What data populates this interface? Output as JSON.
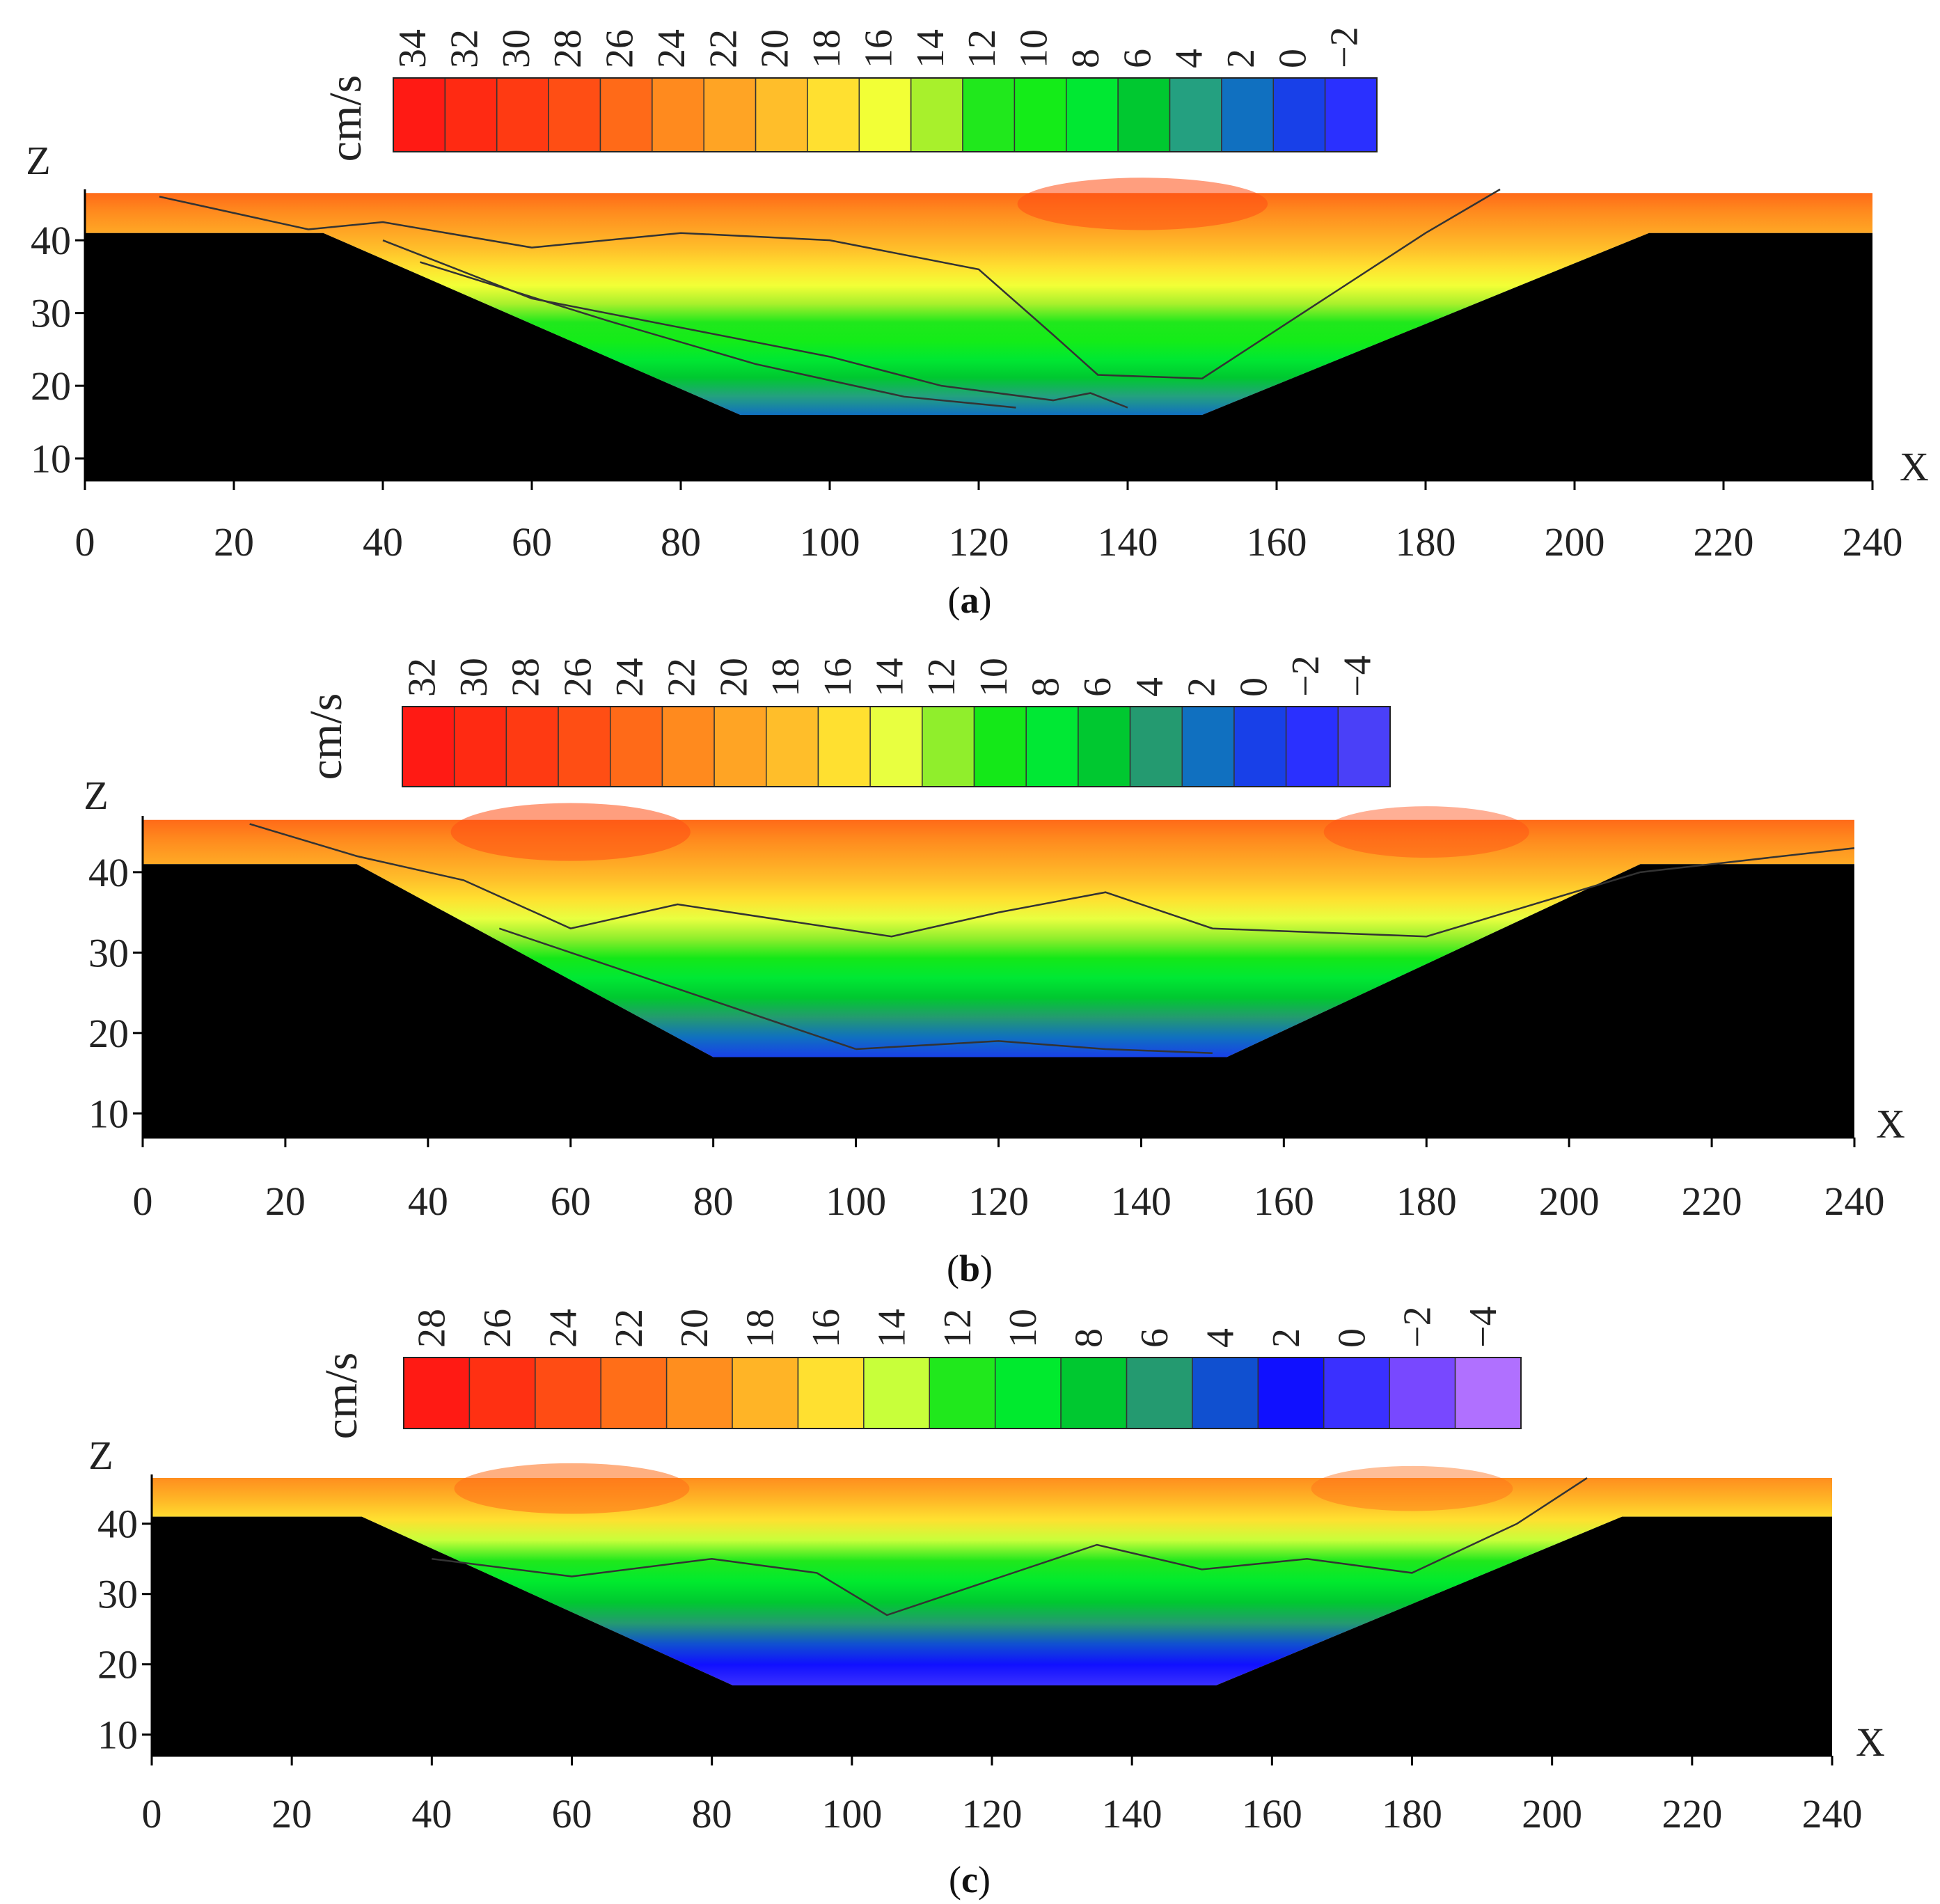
{
  "chart_data": [
    {
      "id": "a",
      "type": "heatmap",
      "caption": "a",
      "xlabel": "X",
      "ylabel": "Z",
      "xlim": [
        0,
        240
      ],
      "ylim": [
        7,
        47
      ],
      "x_ticks": [
        0,
        20,
        40,
        60,
        80,
        100,
        120,
        140,
        160,
        180,
        200,
        220,
        240
      ],
      "y_ticks": [
        10,
        20,
        30,
        40
      ],
      "colorbar": {
        "unit": "cm/s",
        "levels": [
          34,
          32,
          30,
          28,
          26,
          24,
          22,
          20,
          18,
          16,
          14,
          12,
          10,
          8,
          6,
          4,
          2,
          0,
          -2
        ],
        "labels": [
          "34",
          "32",
          "30",
          "28",
          "26",
          "24",
          "22",
          "20",
          "18",
          "16",
          "14",
          "12",
          "10",
          "8",
          "6",
          "4",
          "2",
          "0",
          "−2"
        ],
        "colors": [
          "#ff1a14",
          "#ff2a12",
          "#ff3a12",
          "#ff4e14",
          "#ff6a18",
          "#ff8a1e",
          "#ffa424",
          "#ffbe2a",
          "#ffe030",
          "#f2ff36",
          "#a8f02c",
          "#20e81c",
          "#14ec18",
          "#00e832",
          "#00c830",
          "#24a080",
          "#1070c0",
          "#1840e8",
          "#2a30ff"
        ]
      },
      "bed_profile": [
        [
          0,
          41
        ],
        [
          32,
          41
        ],
        [
          88,
          16
        ],
        [
          150,
          16
        ],
        [
          210,
          41
        ],
        [
          240,
          41
        ]
      ],
      "water_surface": 46.5,
      "contour_lines": [
        [
          [
            10,
            46
          ],
          [
            30,
            41.5
          ],
          [
            40,
            42.5
          ],
          [
            60,
            39
          ],
          [
            80,
            41
          ],
          [
            100,
            40
          ],
          [
            120,
            36
          ],
          [
            130,
            27
          ],
          [
            136,
            21.5
          ],
          [
            150,
            21
          ],
          [
            165,
            31
          ],
          [
            180,
            41
          ],
          [
            190,
            47
          ]
        ],
        [
          [
            40,
            40
          ],
          [
            60,
            32
          ],
          [
            80,
            28
          ],
          [
            100,
            24
          ],
          [
            115,
            20
          ],
          [
            130,
            18
          ],
          [
            135,
            19
          ],
          [
            140,
            17
          ]
        ],
        [
          [
            45,
            37
          ],
          [
            70,
            29
          ],
          [
            90,
            23
          ],
          [
            110,
            18.5
          ],
          [
            125,
            17
          ]
        ]
      ]
    },
    {
      "id": "b",
      "type": "heatmap",
      "caption": "b",
      "xlabel": "X",
      "ylabel": "Z",
      "xlim": [
        0,
        240
      ],
      "ylim": [
        7,
        47
      ],
      "x_ticks": [
        0,
        20,
        40,
        60,
        80,
        100,
        120,
        140,
        160,
        180,
        200,
        220,
        240
      ],
      "y_ticks": [
        10,
        20,
        30,
        40
      ],
      "colorbar": {
        "unit": "cm/s",
        "levels": [
          32,
          30,
          28,
          26,
          24,
          22,
          20,
          18,
          16,
          14,
          12,
          10,
          8,
          6,
          4,
          2,
          0,
          -2,
          -4
        ],
        "labels": [
          "32",
          "30",
          "28",
          "26",
          "24",
          "22",
          "20",
          "18",
          "16",
          "14",
          "12",
          "10",
          "8",
          "6",
          "4",
          "2",
          "0",
          "−2",
          "−4"
        ],
        "colors": [
          "#ff1a14",
          "#ff2a12",
          "#ff3a12",
          "#ff4e14",
          "#ff6a18",
          "#ff8a1e",
          "#ffa424",
          "#ffbe2a",
          "#ffe030",
          "#e8ff40",
          "#90ee2c",
          "#14e818",
          "#00e834",
          "#00c830",
          "#249a70",
          "#1070c0",
          "#1840e8",
          "#2a30ff",
          "#4a40f8"
        ]
      },
      "bed_profile": [
        [
          0,
          41
        ],
        [
          30,
          41
        ],
        [
          80,
          17
        ],
        [
          152,
          17
        ],
        [
          210,
          41
        ],
        [
          240,
          41
        ]
      ],
      "water_surface": 46.5,
      "contour_lines": [
        [
          [
            15,
            46
          ],
          [
            30,
            42
          ],
          [
            45,
            39
          ],
          [
            60,
            33
          ],
          [
            75,
            36
          ],
          [
            105,
            32
          ],
          [
            120,
            35
          ],
          [
            135,
            37.5
          ],
          [
            150,
            33
          ],
          [
            180,
            32
          ],
          [
            210,
            40
          ],
          [
            240,
            43
          ]
        ],
        [
          [
            50,
            33
          ],
          [
            60,
            30
          ],
          [
            80,
            24
          ],
          [
            100,
            18
          ]
        ],
        [
          [
            100,
            18
          ],
          [
            120,
            19
          ],
          [
            135,
            18
          ],
          [
            150,
            17.5
          ]
        ]
      ]
    },
    {
      "id": "c",
      "type": "heatmap",
      "caption": "c",
      "xlabel": "X",
      "ylabel": "Z",
      "xlim": [
        0,
        240
      ],
      "ylim": [
        7,
        47
      ],
      "x_ticks": [
        0,
        20,
        40,
        60,
        80,
        100,
        120,
        140,
        160,
        180,
        200,
        220,
        240
      ],
      "y_ticks": [
        10,
        20,
        30,
        40
      ],
      "colorbar": {
        "unit": "cm/s",
        "levels": [
          28,
          26,
          24,
          22,
          20,
          18,
          16,
          14,
          12,
          10,
          8,
          6,
          4,
          2,
          0,
          -2,
          -4
        ],
        "labels": [
          "28",
          "26",
          "24",
          "22",
          "20",
          "18",
          "16",
          "14",
          "12",
          "10",
          "8",
          "6",
          "4",
          "2",
          "0",
          "−2",
          "−4"
        ],
        "colors": [
          "#ff1a14",
          "#ff3012",
          "#ff4c14",
          "#ff6e18",
          "#ff8e1e",
          "#ffb426",
          "#ffe030",
          "#c8ff3a",
          "#20e81c",
          "#00ea2e",
          "#00c830",
          "#249a70",
          "#1050d0",
          "#1010ff",
          "#3a30ff",
          "#7848ff",
          "#b070ff"
        ]
      },
      "bed_profile": [
        [
          0,
          41
        ],
        [
          30,
          41
        ],
        [
          83,
          17
        ],
        [
          152,
          17
        ],
        [
          210,
          41
        ],
        [
          240,
          41
        ]
      ],
      "water_surface": 46.5,
      "contour_lines": [
        [
          [
            40,
            35
          ],
          [
            60,
            32.5
          ],
          [
            80,
            35
          ],
          [
            95,
            33
          ],
          [
            105,
            27
          ],
          [
            120,
            32
          ],
          [
            135,
            37
          ],
          [
            150,
            33.5
          ],
          [
            165,
            35
          ],
          [
            180,
            33
          ],
          [
            195,
            40
          ],
          [
            205,
            46.5
          ]
        ]
      ]
    }
  ]
}
